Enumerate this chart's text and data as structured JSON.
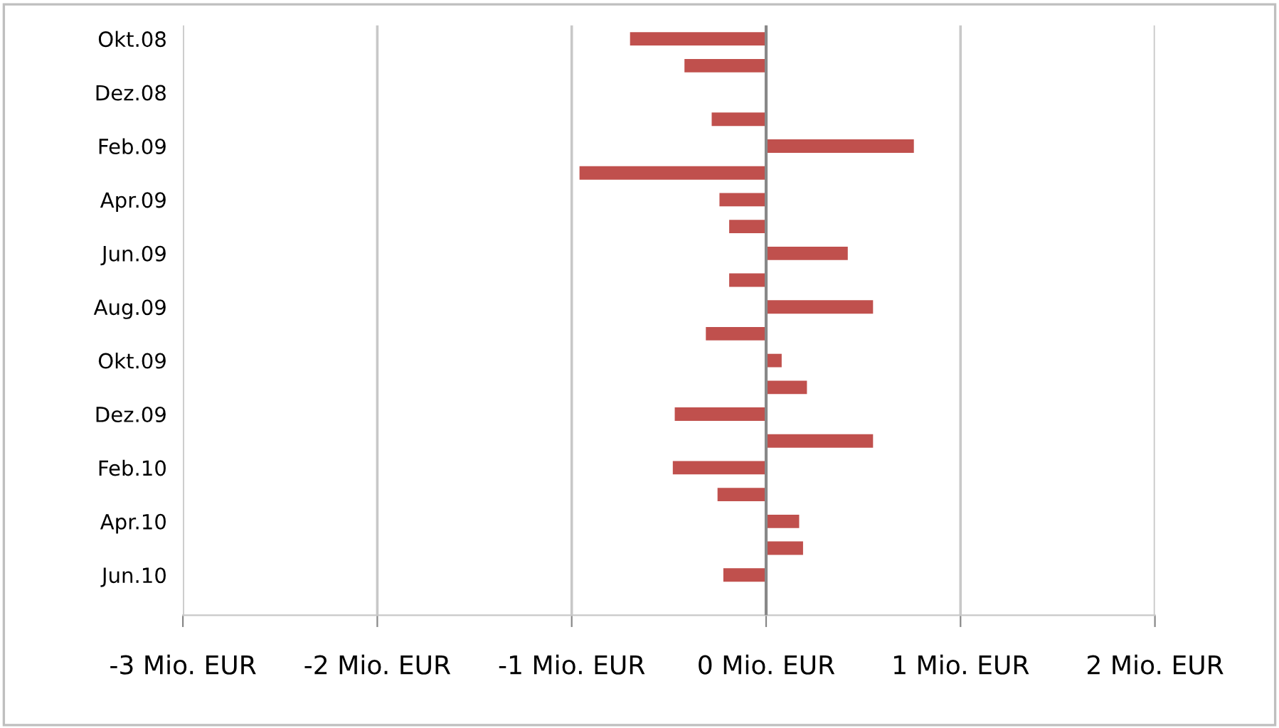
{
  "chart_data": {
    "type": "bar",
    "orientation": "horizontal",
    "categories": [
      "Okt.08",
      null,
      "Dez.08",
      null,
      "Feb.09",
      null,
      "Apr.09",
      null,
      "Jun.09",
      null,
      "Aug.09",
      null,
      "Okt.09",
      null,
      "Dez.09",
      null,
      "Feb.10",
      null,
      "Apr.10",
      null,
      "Jun.10",
      null
    ],
    "values": [
      -0.7,
      -0.42,
      null,
      -0.28,
      0.76,
      -0.96,
      -0.24,
      -0.19,
      0.42,
      -0.19,
      0.55,
      -0.31,
      0.08,
      0.21,
      -0.47,
      0.55,
      -0.48,
      -0.25,
      0.17,
      0.19,
      -0.22,
      null
    ],
    "color": "#c0504d",
    "xlim": [
      -3,
      2
    ],
    "xticks": [
      {
        "value": -3,
        "label": "-3 Mio. EUR"
      },
      {
        "value": -2,
        "label": "-2 Mio. EUR"
      },
      {
        "value": -1,
        "label": "-1 Mio. EUR"
      },
      {
        "value": 0,
        "label": "0 Mio. EUR"
      },
      {
        "value": 1,
        "label": "1 Mio. EUR"
      },
      {
        "value": 2,
        "label": "2 Mio. EUR"
      }
    ],
    "grid": "x"
  }
}
